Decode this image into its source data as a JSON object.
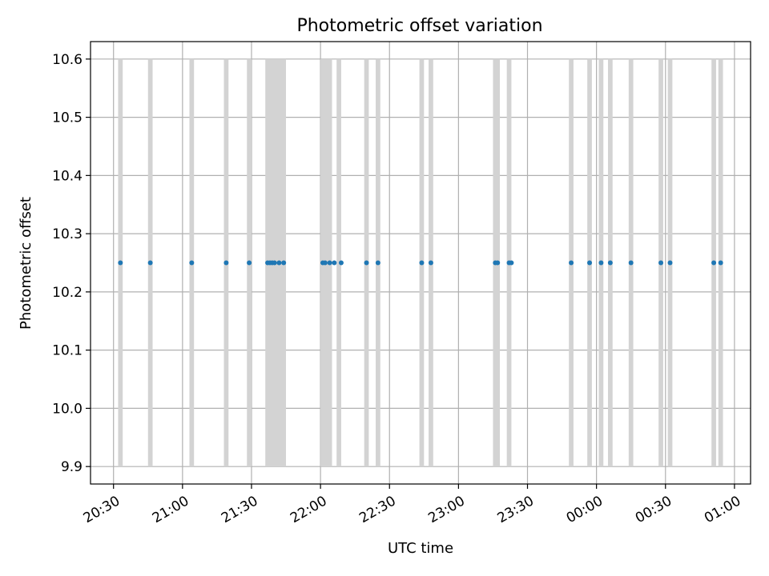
{
  "chart_data": {
    "type": "scatter",
    "title": "Photometric offset variation",
    "xlabel": "UTC time",
    "ylabel": "Photometric offset",
    "x_tick_labels": [
      "20:30",
      "21:00",
      "21:30",
      "22:00",
      "22:30",
      "23:00",
      "23:30",
      "00:00",
      "00:30",
      "01:00"
    ],
    "y_tick_labels": [
      "9.9",
      "10.0",
      "10.1",
      "10.2",
      "10.3",
      "10.4",
      "10.5",
      "10.6"
    ],
    "xlim": [
      "20:20",
      "01:07"
    ],
    "ylim": [
      9.87,
      10.63
    ],
    "grid": true,
    "colors": {
      "points": "#1f77b4",
      "spans": "#d3d3d3",
      "grid": "#b0b0b0"
    },
    "series": [
      {
        "x": [
          "20:33",
          "20:46",
          "21:04",
          "21:19",
          "21:29",
          "21:37",
          "21:38",
          "21:39",
          "21:40",
          "21:42",
          "21:44",
          "22:01",
          "22:02",
          "22:04",
          "22:06",
          "22:09",
          "22:20",
          "22:25",
          "22:44",
          "22:48",
          "23:16",
          "23:17",
          "23:22",
          "23:23",
          "23:49",
          "23:57",
          "00:02",
          "00:06",
          "00:15",
          "00:28",
          "00:32",
          "00:51",
          "00:54"
        ],
        "y": [
          10.25,
          10.25,
          10.25,
          10.25,
          10.25,
          10.25,
          10.25,
          10.25,
          10.25,
          10.25,
          10.25,
          10.25,
          10.25,
          10.25,
          10.25,
          10.25,
          10.25,
          10.25,
          10.25,
          10.25,
          10.25,
          10.25,
          10.25,
          10.25,
          10.25,
          10.25,
          10.25,
          10.25,
          10.25,
          10.25,
          10.25,
          10.25,
          10.25
        ]
      }
    ],
    "shaded_intervals": [
      [
        "20:32",
        "20:34"
      ],
      [
        "20:45",
        "20:47"
      ],
      [
        "21:03",
        "21:05"
      ],
      [
        "21:18",
        "21:20"
      ],
      [
        "21:28",
        "21:30"
      ],
      [
        "21:36",
        "21:45"
      ],
      [
        "22:00",
        "22:05"
      ],
      [
        "22:07",
        "22:09"
      ],
      [
        "22:19",
        "22:21"
      ],
      [
        "22:24",
        "22:26"
      ],
      [
        "22:43",
        "22:45"
      ],
      [
        "22:47",
        "22:49"
      ],
      [
        "23:15",
        "23:18"
      ],
      [
        "23:21",
        "23:23"
      ],
      [
        "23:48",
        "23:50"
      ],
      [
        "23:56",
        "23:58"
      ],
      [
        "00:01",
        "00:03"
      ],
      [
        "00:05",
        "00:07"
      ],
      [
        "00:14",
        "00:16"
      ],
      [
        "00:27",
        "00:29"
      ],
      [
        "00:31",
        "00:33"
      ],
      [
        "00:50",
        "00:52"
      ],
      [
        "00:53",
        "00:55"
      ]
    ]
  }
}
